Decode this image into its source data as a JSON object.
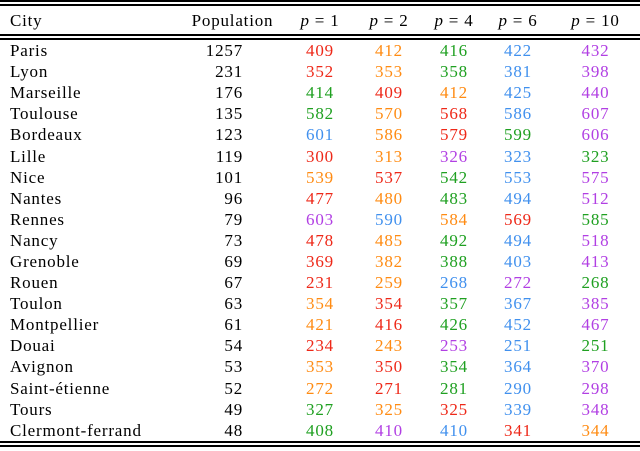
{
  "palette": {
    "red": "#ee2818",
    "orange": "#ff8b12",
    "green": "#1fa021",
    "blue": "#4090ee",
    "purple": "#b13fe3",
    "text": "#000000",
    "rule": "#000000",
    "background": "#ffffff"
  },
  "table": {
    "headers": [
      {
        "key": "city",
        "kind": "text",
        "label": "City"
      },
      {
        "key": "population",
        "kind": "text",
        "label": "Population"
      },
      {
        "key": "p1",
        "kind": "math",
        "variable": "p",
        "rest": " = 1"
      },
      {
        "key": "p2",
        "kind": "math",
        "variable": "p",
        "rest": " = 2"
      },
      {
        "key": "p4",
        "kind": "math",
        "variable": "p",
        "rest": " = 4"
      },
      {
        "key": "p6",
        "kind": "math",
        "variable": "p",
        "rest": " = 6"
      },
      {
        "key": "p10",
        "kind": "math",
        "variable": "p",
        "rest": " = 10"
      }
    ],
    "rows": [
      {
        "city": "Paris",
        "population": "1257",
        "values": [
          {
            "text": "409",
            "color": "red"
          },
          {
            "text": "412",
            "color": "orange"
          },
          {
            "text": "416",
            "color": "green"
          },
          {
            "text": "422",
            "color": "blue"
          },
          {
            "text": "432",
            "color": "purple"
          }
        ]
      },
      {
        "city": "Lyon",
        "population": "231",
        "values": [
          {
            "text": "352",
            "color": "red"
          },
          {
            "text": "353",
            "color": "orange"
          },
          {
            "text": "358",
            "color": "green"
          },
          {
            "text": "381",
            "color": "blue"
          },
          {
            "text": "398",
            "color": "purple"
          }
        ]
      },
      {
        "city": "Marseille",
        "population": "176",
        "values": [
          {
            "text": "414",
            "color": "green"
          },
          {
            "text": "409",
            "color": "red"
          },
          {
            "text": "412",
            "color": "orange"
          },
          {
            "text": "425",
            "color": "blue"
          },
          {
            "text": "440",
            "color": "purple"
          }
        ]
      },
      {
        "city": "Toulouse",
        "population": "135",
        "values": [
          {
            "text": "582",
            "color": "green"
          },
          {
            "text": "570",
            "color": "orange"
          },
          {
            "text": "568",
            "color": "red"
          },
          {
            "text": "586",
            "color": "blue"
          },
          {
            "text": "607",
            "color": "purple"
          }
        ]
      },
      {
        "city": "Bordeaux",
        "population": "123",
        "values": [
          {
            "text": "601",
            "color": "blue"
          },
          {
            "text": "586",
            "color": "orange"
          },
          {
            "text": "579",
            "color": "red"
          },
          {
            "text": "599",
            "color": "green"
          },
          {
            "text": "606",
            "color": "purple"
          }
        ]
      },
      {
        "city": "Lille",
        "population": "119",
        "values": [
          {
            "text": "300",
            "color": "red"
          },
          {
            "text": "313",
            "color": "orange"
          },
          {
            "text": "326",
            "color": "purple"
          },
          {
            "text": "323",
            "color": "blue"
          },
          {
            "text": "323",
            "color": "green"
          }
        ]
      },
      {
        "city": "Nice",
        "population": "101",
        "values": [
          {
            "text": "539",
            "color": "orange"
          },
          {
            "text": "537",
            "color": "red"
          },
          {
            "text": "542",
            "color": "green"
          },
          {
            "text": "553",
            "color": "blue"
          },
          {
            "text": "575",
            "color": "purple"
          }
        ]
      },
      {
        "city": "Nantes",
        "population": "96",
        "values": [
          {
            "text": "477",
            "color": "red"
          },
          {
            "text": "480",
            "color": "orange"
          },
          {
            "text": "483",
            "color": "green"
          },
          {
            "text": "494",
            "color": "blue"
          },
          {
            "text": "512",
            "color": "purple"
          }
        ]
      },
      {
        "city": "Rennes",
        "population": "79",
        "values": [
          {
            "text": "603",
            "color": "purple"
          },
          {
            "text": "590",
            "color": "blue"
          },
          {
            "text": "584",
            "color": "orange"
          },
          {
            "text": "569",
            "color": "red"
          },
          {
            "text": "585",
            "color": "green"
          }
        ]
      },
      {
        "city": "Nancy",
        "population": "73",
        "values": [
          {
            "text": "478",
            "color": "red"
          },
          {
            "text": "485",
            "color": "orange"
          },
          {
            "text": "492",
            "color": "green"
          },
          {
            "text": "494",
            "color": "blue"
          },
          {
            "text": "518",
            "color": "purple"
          }
        ]
      },
      {
        "city": "Grenoble",
        "population": "69",
        "values": [
          {
            "text": "369",
            "color": "red"
          },
          {
            "text": "382",
            "color": "orange"
          },
          {
            "text": "388",
            "color": "green"
          },
          {
            "text": "403",
            "color": "blue"
          },
          {
            "text": "413",
            "color": "purple"
          }
        ]
      },
      {
        "city": "Rouen",
        "population": "67",
        "values": [
          {
            "text": "231",
            "color": "red"
          },
          {
            "text": "259",
            "color": "orange"
          },
          {
            "text": "268",
            "color": "blue"
          },
          {
            "text": "272",
            "color": "purple"
          },
          {
            "text": "268",
            "color": "green"
          }
        ]
      },
      {
        "city": "Toulon",
        "population": "63",
        "values": [
          {
            "text": "354",
            "color": "orange"
          },
          {
            "text": "354",
            "color": "red"
          },
          {
            "text": "357",
            "color": "green"
          },
          {
            "text": "367",
            "color": "blue"
          },
          {
            "text": "385",
            "color": "purple"
          }
        ]
      },
      {
        "city": "Montpellier",
        "population": "61",
        "values": [
          {
            "text": "421",
            "color": "orange"
          },
          {
            "text": "416",
            "color": "red"
          },
          {
            "text": "426",
            "color": "green"
          },
          {
            "text": "452",
            "color": "blue"
          },
          {
            "text": "467",
            "color": "purple"
          }
        ]
      },
      {
        "city": "Douai",
        "population": "54",
        "values": [
          {
            "text": "234",
            "color": "red"
          },
          {
            "text": "243",
            "color": "orange"
          },
          {
            "text": "253",
            "color": "purple"
          },
          {
            "text": "251",
            "color": "blue"
          },
          {
            "text": "251",
            "color": "green"
          }
        ]
      },
      {
        "city": "Avignon",
        "population": "53",
        "values": [
          {
            "text": "353",
            "color": "orange"
          },
          {
            "text": "350",
            "color": "red"
          },
          {
            "text": "354",
            "color": "green"
          },
          {
            "text": "364",
            "color": "blue"
          },
          {
            "text": "370",
            "color": "purple"
          }
        ]
      },
      {
        "city": "Saint-étienne",
        "population": "52",
        "values": [
          {
            "text": "272",
            "color": "orange"
          },
          {
            "text": "271",
            "color": "red"
          },
          {
            "text": "281",
            "color": "green"
          },
          {
            "text": "290",
            "color": "blue"
          },
          {
            "text": "298",
            "color": "purple"
          }
        ]
      },
      {
        "city": "Tours",
        "population": "49",
        "values": [
          {
            "text": "327",
            "color": "green"
          },
          {
            "text": "325",
            "color": "orange"
          },
          {
            "text": "325",
            "color": "red"
          },
          {
            "text": "339",
            "color": "blue"
          },
          {
            "text": "348",
            "color": "purple"
          }
        ]
      },
      {
        "city": "Clermont-ferrand",
        "population": "48",
        "values": [
          {
            "text": "408",
            "color": "green"
          },
          {
            "text": "410",
            "color": "purple"
          },
          {
            "text": "410",
            "color": "blue"
          },
          {
            "text": "341",
            "color": "red"
          },
          {
            "text": "344",
            "color": "orange"
          }
        ]
      }
    ]
  }
}
